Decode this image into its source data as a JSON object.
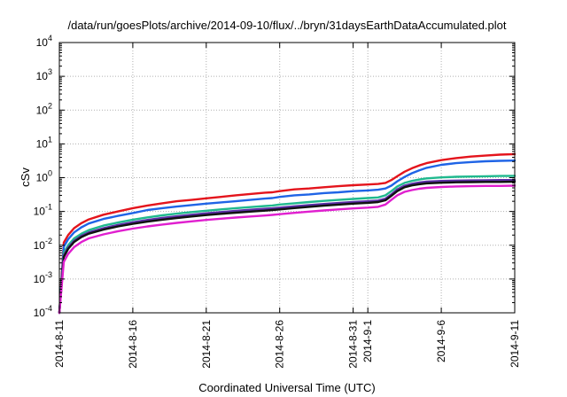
{
  "chart_data": {
    "type": "line",
    "title": "/data/run/goesPlots/archive/2014-09-10/flux/../bryn/31daysEarthDataAccumulated.plot",
    "xlabel": "Coordinated Universal Time (UTC)",
    "ylabel": "cSv",
    "y_scale": "log",
    "ylim": [
      0.0001,
      10000
    ],
    "xlim": [
      0,
      31
    ],
    "x_unit": "days since 2014-8-11",
    "x_ticks": [
      {
        "value": 0,
        "label": "2014-8-11"
      },
      {
        "value": 5,
        "label": "2014-8-16"
      },
      {
        "value": 10,
        "label": "2014-8-21"
      },
      {
        "value": 15,
        "label": "2014-8-26"
      },
      {
        "value": 20,
        "label": "2014-8-31"
      },
      {
        "value": 21,
        "label": "2014-9-1"
      },
      {
        "value": 26,
        "label": "2014-9-6"
      },
      {
        "value": 31,
        "label": "2014-9-11"
      }
    ],
    "y_ticks": [
      {
        "exp": -4
      },
      {
        "exp": -3
      },
      {
        "exp": -2
      },
      {
        "exp": -1
      },
      {
        "exp": 0
      },
      {
        "exp": 1
      },
      {
        "exp": 2
      },
      {
        "exp": 3
      },
      {
        "exp": 4
      }
    ],
    "grid": true,
    "x": [
      0,
      0.3,
      0.6,
      1,
      1.5,
      2,
      3,
      4,
      5,
      6,
      7,
      8,
      9,
      10,
      11,
      12,
      13,
      14,
      14.5,
      15,
      16,
      17,
      18,
      19,
      20,
      21,
      21.7,
      22.2,
      22.6,
      23,
      23.5,
      24,
      24.5,
      25,
      26,
      27,
      28,
      29,
      30,
      31
    ],
    "series": [
      {
        "color": "#e4141c",
        "values": [
          0.0001,
          0.012,
          0.02,
          0.032,
          0.045,
          0.058,
          0.08,
          0.1,
          0.125,
          0.15,
          0.175,
          0.2,
          0.22,
          0.245,
          0.27,
          0.3,
          0.33,
          0.36,
          0.37,
          0.4,
          0.45,
          0.48,
          0.52,
          0.56,
          0.6,
          0.63,
          0.65,
          0.7,
          0.85,
          1.1,
          1.5,
          1.9,
          2.3,
          2.7,
          3.3,
          3.8,
          4.2,
          4.5,
          4.8,
          5.0
        ]
      },
      {
        "color": "#1f64e6",
        "values": [
          0.0001,
          0.009,
          0.015,
          0.024,
          0.034,
          0.044,
          0.06,
          0.074,
          0.09,
          0.11,
          0.125,
          0.14,
          0.155,
          0.17,
          0.185,
          0.2,
          0.22,
          0.24,
          0.25,
          0.27,
          0.3,
          0.32,
          0.35,
          0.37,
          0.4,
          0.42,
          0.44,
          0.48,
          0.58,
          0.78,
          1.05,
          1.35,
          1.65,
          1.95,
          2.4,
          2.7,
          2.9,
          3.05,
          3.15,
          3.2
        ]
      },
      {
        "color": "#20b98e",
        "values": [
          0.0001,
          0.006,
          0.01,
          0.016,
          0.022,
          0.028,
          0.038,
          0.047,
          0.057,
          0.067,
          0.077,
          0.086,
          0.096,
          0.105,
          0.115,
          0.125,
          0.135,
          0.145,
          0.15,
          0.16,
          0.175,
          0.19,
          0.205,
          0.22,
          0.235,
          0.25,
          0.26,
          0.3,
          0.4,
          0.55,
          0.7,
          0.8,
          0.88,
          0.95,
          1.02,
          1.06,
          1.08,
          1.1,
          1.12,
          1.13
        ]
      },
      {
        "color": "#5a2ea6",
        "values": [
          0.0001,
          0.005,
          0.0085,
          0.0135,
          0.019,
          0.024,
          0.032,
          0.04,
          0.048,
          0.056,
          0.064,
          0.072,
          0.08,
          0.088,
          0.096,
          0.104,
          0.112,
          0.12,
          0.124,
          0.13,
          0.142,
          0.154,
          0.166,
          0.178,
          0.19,
          0.2,
          0.21,
          0.24,
          0.32,
          0.45,
          0.58,
          0.66,
          0.72,
          0.76,
          0.8,
          0.82,
          0.83,
          0.84,
          0.85,
          0.85
        ]
      },
      {
        "color": "#111111",
        "values": [
          0.0001,
          0.0045,
          0.0078,
          0.0125,
          0.0175,
          0.022,
          0.029,
          0.036,
          0.043,
          0.05,
          0.057,
          0.064,
          0.071,
          0.078,
          0.085,
          0.092,
          0.099,
          0.106,
          0.11,
          0.115,
          0.126,
          0.137,
          0.148,
          0.159,
          0.17,
          0.18,
          0.19,
          0.215,
          0.29,
          0.4,
          0.52,
          0.59,
          0.64,
          0.68,
          0.71,
          0.73,
          0.74,
          0.75,
          0.75,
          0.76
        ]
      },
      {
        "color": "#e01fcf",
        "values": [
          0.0001,
          0.0032,
          0.0055,
          0.0088,
          0.0125,
          0.016,
          0.021,
          0.026,
          0.031,
          0.036,
          0.041,
          0.046,
          0.051,
          0.056,
          0.061,
          0.066,
          0.071,
          0.076,
          0.079,
          0.083,
          0.091,
          0.099,
          0.107,
          0.115,
          0.123,
          0.13,
          0.137,
          0.16,
          0.22,
          0.3,
          0.38,
          0.43,
          0.47,
          0.5,
          0.53,
          0.55,
          0.56,
          0.57,
          0.57,
          0.58
        ]
      }
    ]
  }
}
